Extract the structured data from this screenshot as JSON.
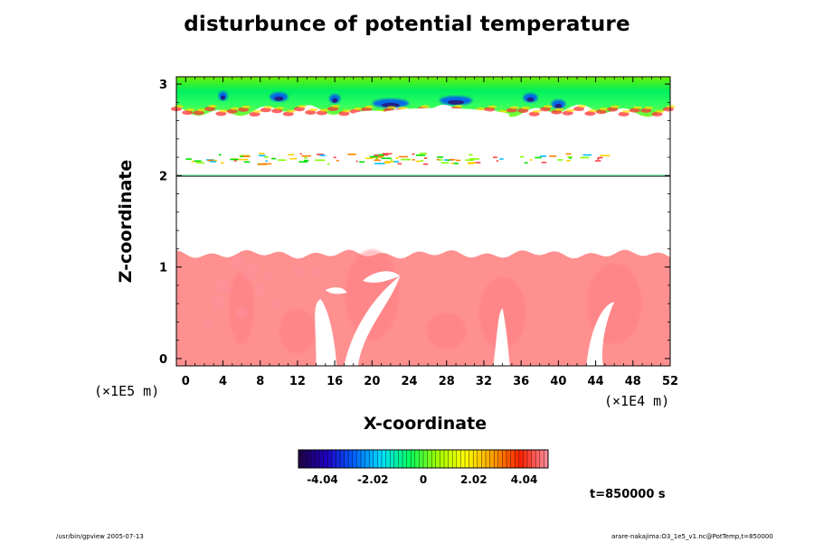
{
  "chart_data": {
    "type": "heatmap",
    "title": "disturbunce of potential temperature",
    "xlabel": "X-coordinate",
    "ylabel": "Z-coordinate",
    "x_unit_note": "(×1E4 m)",
    "z_unit_note": "(×1E5 m)",
    "xlim": [
      -1,
      52
    ],
    "ylim": [
      -0.08,
      3.08
    ],
    "x_ticks": [
      0,
      4,
      8,
      12,
      16,
      20,
      24,
      28,
      32,
      36,
      40,
      44,
      48,
      52
    ],
    "y_ticks": [
      0,
      1,
      2,
      3
    ],
    "colorbar": {
      "min": -5.0,
      "max": 5.0,
      "tick_values": [
        -4.04,
        -2.02,
        0,
        2.02,
        4.04
      ],
      "tick_labels": [
        "-4.04",
        "-2.02",
        "0",
        "2.02",
        "4.04"
      ],
      "colormap": [
        "#200040",
        "#2000c0",
        "#0060ff",
        "#00e0ff",
        "#00ff60",
        "#a0ff00",
        "#ffff00",
        "#ffa000",
        "#ff2000",
        "#ff90a0"
      ]
    },
    "regions": [
      {
        "name": "lower layer (uniform positive disturbance)",
        "x": [
          -1,
          52
        ],
        "z": [
          -0.08,
          1.17
        ],
        "value": 4.4
      },
      {
        "name": "lower layer embedded strong cells",
        "x": [
          2,
          13
        ],
        "z": [
          0.3,
          1.1
        ],
        "value": 5.0
      },
      {
        "name": "mid-level thin layer",
        "z": [
          2.0,
          2.0
        ],
        "value": 0
      },
      {
        "name": "mid-level streaks",
        "x": [
          0,
          46
        ],
        "z": [
          2.12,
          2.25
        ],
        "value": 1.5
      },
      {
        "name": "upper layer (near-zero / mixed)",
        "x": [
          -1,
          52
        ],
        "z": [
          2.65,
          3.08
        ],
        "value": 0.5
      }
    ]
  },
  "annotations": {
    "time": "t=850000 s",
    "footer_left": "/usr/bin/gpview 2005-07-13",
    "footer_right": "arare-nakajima:O3_1e5_v1.nc@PotTemp,t=850000"
  }
}
